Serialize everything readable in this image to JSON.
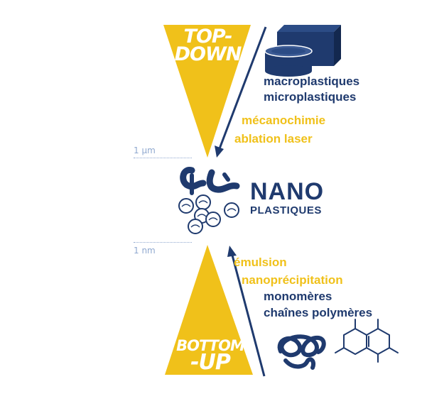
{
  "top": {
    "title_line1": "TOP-",
    "title_line2": "DOWN",
    "items_navy": [
      "macroplastiques",
      "microplastiques"
    ],
    "items_gold": [
      "mécanochimie",
      "ablation laser"
    ]
  },
  "bottom": {
    "title_line1": "BOTTOM",
    "title_line2": "-UP",
    "items_gold": [
      "émulsion",
      "nanoprécipitation"
    ],
    "items_navy": [
      "monomères",
      "chaînes polymères"
    ]
  },
  "center": {
    "title": "NANO",
    "subtitle": "PLASTIQUES"
  },
  "scale": {
    "upper": "1 µm",
    "lower": "1 nm"
  },
  "colors": {
    "gold": "#f0c11a",
    "navy": "#1f3a6e",
    "scale": "#8fa8cf"
  },
  "icons": {
    "macro": "block-and-disc-icon",
    "nano": "fragments-and-spheres-icon",
    "molecule": "polymer-chain-and-ring-icon"
  }
}
